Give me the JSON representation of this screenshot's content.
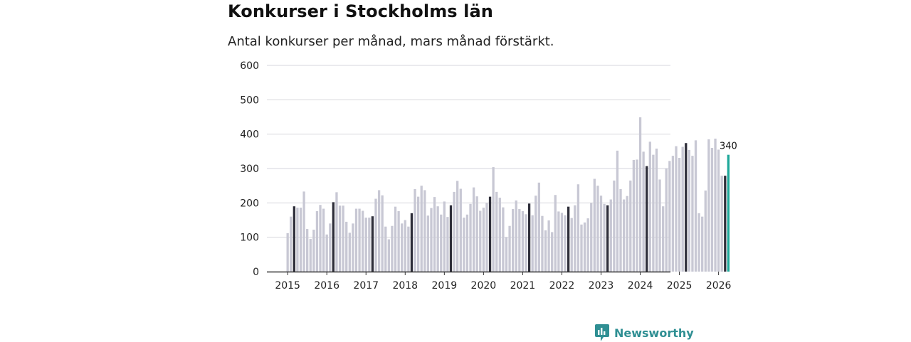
{
  "chart_data": {
    "type": "bar",
    "title": "Konkurser i Stockholms län",
    "subtitle": "Antal konkurser per månad, mars månad förstärkt.",
    "xlabel": "",
    "ylabel": "",
    "ylim": [
      0,
      600
    ],
    "yticks": [
      0,
      100,
      200,
      300,
      400,
      500,
      600
    ],
    "year_ticks": [
      "2015",
      "2016",
      "2017",
      "2018",
      "2019",
      "2020",
      "2021",
      "2022",
      "2023",
      "2024",
      "2025",
      "2026"
    ],
    "start": "2015-01",
    "values": [
      112,
      160,
      190,
      186,
      186,
      233,
      124,
      95,
      122,
      176,
      194,
      183,
      108,
      140,
      202,
      231,
      192,
      192,
      145,
      113,
      140,
      183,
      183,
      177,
      157,
      157,
      161,
      212,
      237,
      222,
      131,
      94,
      133,
      189,
      176,
      140,
      150,
      131,
      170,
      240,
      218,
      250,
      237,
      163,
      185,
      217,
      190,
      166,
      204,
      159,
      193,
      232,
      264,
      241,
      157,
      166,
      197,
      245,
      219,
      177,
      186,
      200,
      218,
      304,
      232,
      215,
      187,
      100,
      133,
      182,
      207,
      182,
      176,
      167,
      198,
      164,
      221,
      259,
      162,
      120,
      149,
      115,
      223,
      175,
      171,
      164,
      189,
      156,
      193,
      254,
      137,
      143,
      155,
      200,
      270,
      250,
      221,
      197,
      193,
      210,
      265,
      352,
      240,
      210,
      220,
      265,
      325,
      326,
      449,
      349,
      307,
      378,
      340,
      358,
      268,
      190,
      300,
      322,
      337,
      365,
      331,
      363,
      374,
      354,
      337,
      382,
      170,
      160,
      236,
      385,
      360,
      387,
      355,
      279,
      279,
      340
    ],
    "highlight_month": 3,
    "latest_value_label": "340",
    "colors": {
      "regular": "#c8c8d4",
      "march": "#2e2e3a",
      "latest": "#1fa89a",
      "grid": "#d6d6dc",
      "axis": "#333333"
    }
  },
  "brand": {
    "name": "Newsworthy",
    "icon": "bar-chart-logo-icon",
    "color": "#2f8f93"
  }
}
